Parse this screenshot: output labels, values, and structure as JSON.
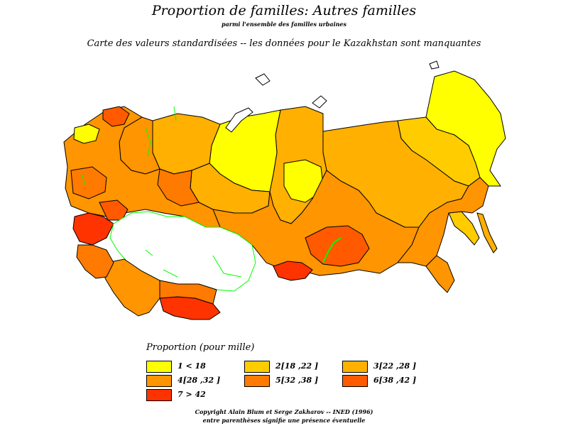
{
  "header": {
    "title": "Proportion de familles: Autres familles",
    "subtitle": "parmi l'ensemble des familles urbaines",
    "map_title": "Carte des valeurs standardisées  --  les données pour le Kazakhstan sont manquantes"
  },
  "legend": {
    "title": "Proportion (pour mille)",
    "classes": [
      {
        "label": "1  <  18",
        "color": "#ffff00"
      },
      {
        "label": "2[18 ,22 ]",
        "color": "#ffcc00"
      },
      {
        "label": "3[22 ,28 ]",
        "color": "#ffb000"
      },
      {
        "label": "4[28 ,32 ]",
        "color": "#ff9500"
      },
      {
        "label": "5[32 ,38 ]",
        "color": "#ff7a00"
      },
      {
        "label": "6[38 ,42 ]",
        "color": "#ff5a00"
      },
      {
        "label": "7  >  42",
        "color": "#ff3300"
      }
    ]
  },
  "colors": {
    "missing": "#ffffff",
    "border": "#000000",
    "missing_border": "#00ff00"
  },
  "footer": {
    "copyright": "Copyright Alain Blum et Serge Zakharov -- INED (1996)",
    "note": "entre parenthèses signifie une présence éventuelle"
  }
}
